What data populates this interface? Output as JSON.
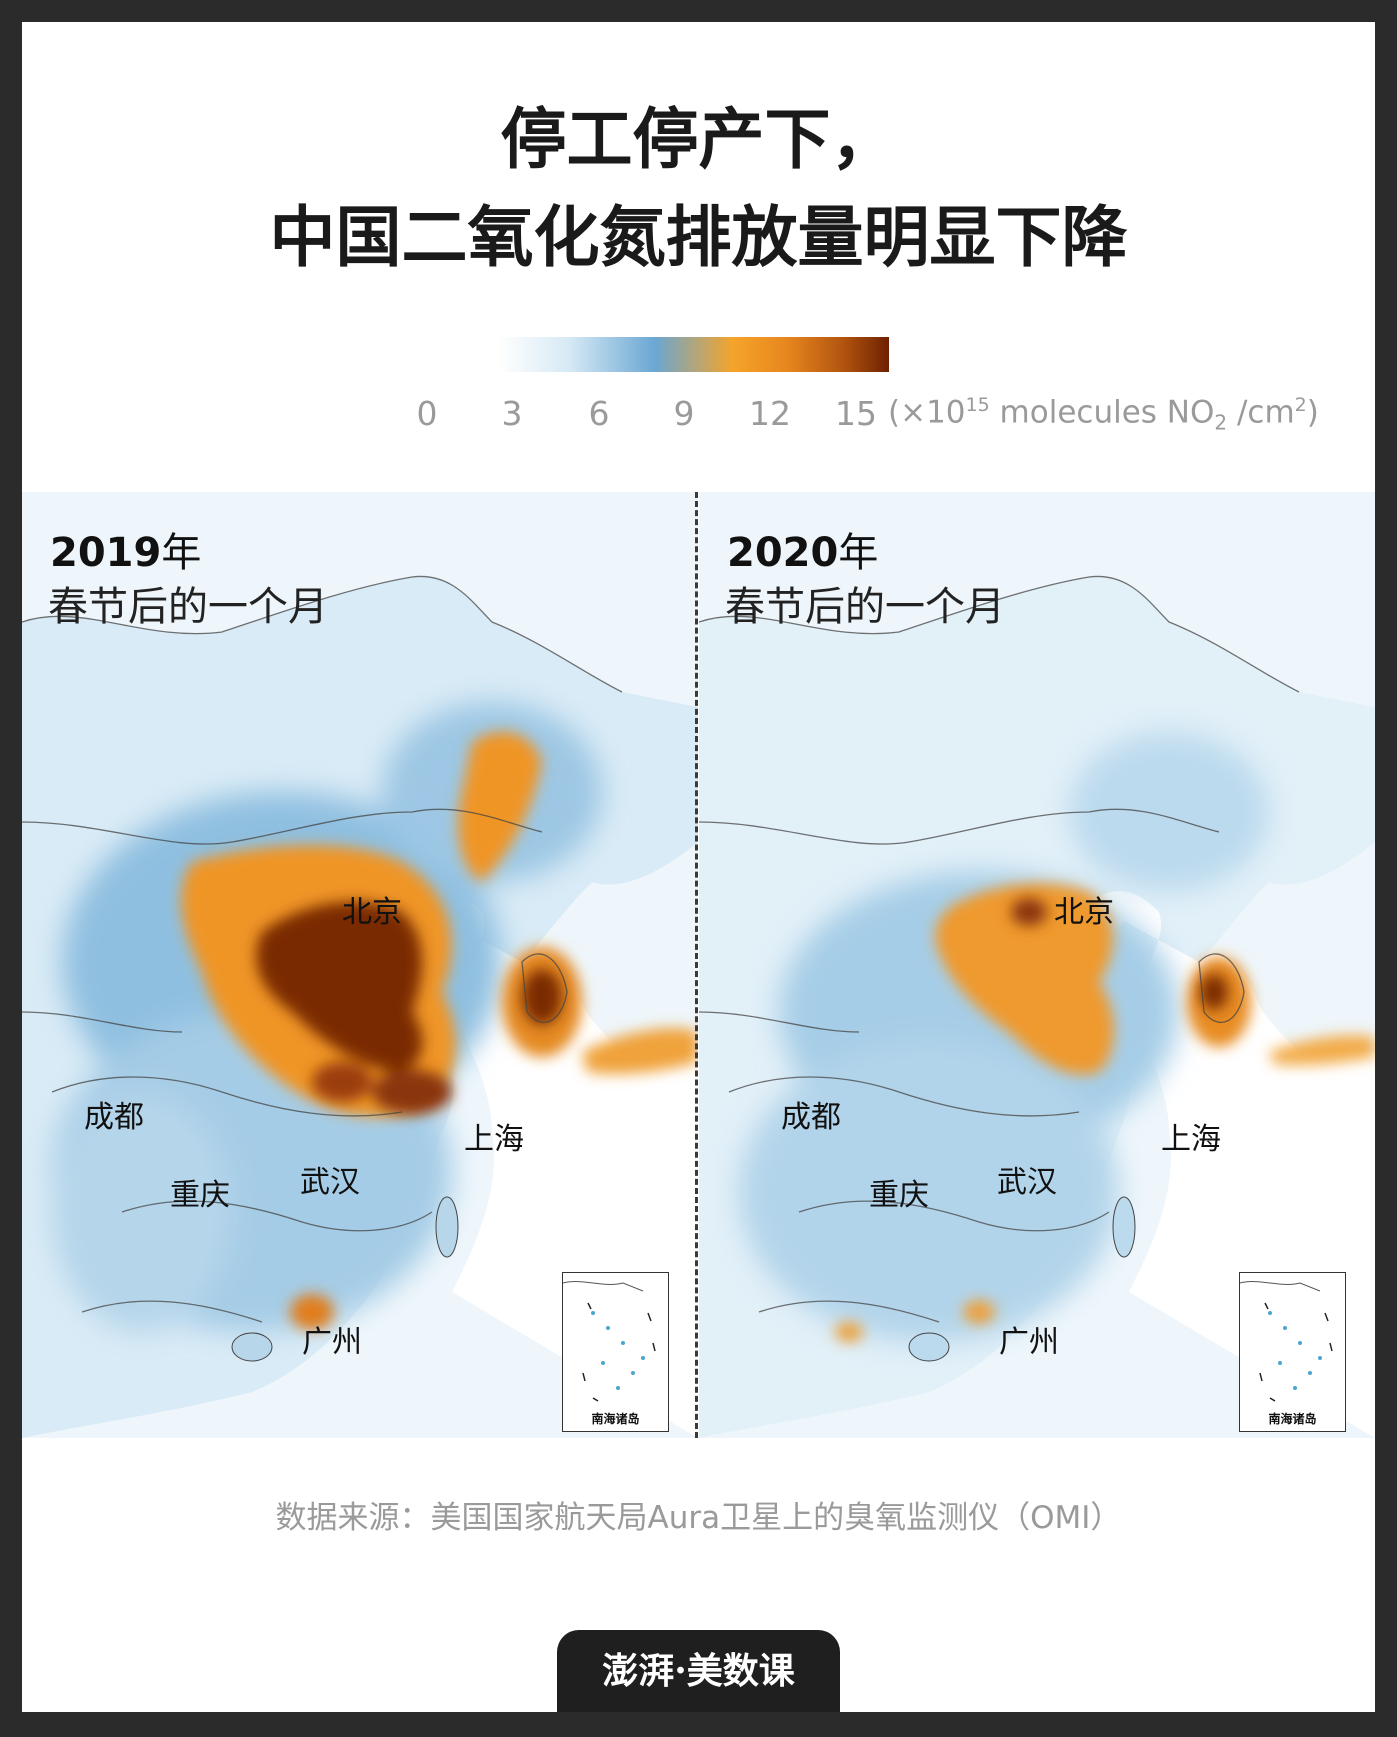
{
  "title": {
    "line1": "停工停产下，",
    "line2": "中国二氧化氮排放量明显下降"
  },
  "legend": {
    "ticks": [
      "0",
      "3",
      "6",
      "9",
      "12",
      "15"
    ],
    "unit_prefix": "(×10",
    "unit_exp": "15",
    "unit_mid": " molecules NO",
    "unit_sub": "2",
    "unit_mid2": " /cm",
    "unit_exp2": "2",
    "unit_suffix": ")"
  },
  "panels": [
    {
      "year": "2019",
      "year_suffix": "年",
      "subtitle": "春节后的一个月",
      "cities": [
        "北京",
        "成都",
        "上海",
        "重庆",
        "武汉",
        "广州"
      ],
      "inset_label": "南海诸岛"
    },
    {
      "year": "2020",
      "year_suffix": "年",
      "subtitle": "春节后的一个月",
      "cities": [
        "北京",
        "成都",
        "上海",
        "重庆",
        "武汉",
        "广州"
      ],
      "inset_label": "南海诸岛"
    }
  ],
  "source": "数据来源：美国国家航天局Aura卫星上的臭氧监测仪（OMI）",
  "brand": "澎湃·美数课"
}
